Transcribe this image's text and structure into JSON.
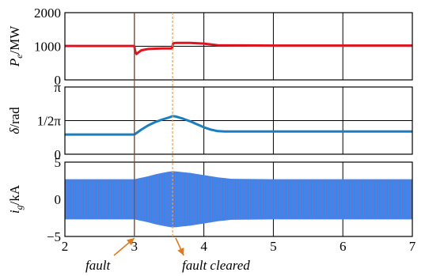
{
  "colors": {
    "power": "#e0141e",
    "angle": "#1a7fc0",
    "current_fill": "#3a87f0",
    "current_stripe": "#c84a6e",
    "fault_line": "#8a4a2a",
    "clear_line": "#e8a050",
    "arrow": "#e07a1a"
  },
  "chart_data": [
    {
      "type": "line",
      "panel": "power",
      "ylabel_main": "P",
      "ylabel_sub": "e",
      "ylabel_unit": "/MW",
      "ylim": [
        0,
        2000
      ],
      "yticks": [
        0,
        1000,
        2000
      ],
      "ytick_labels": [
        "0",
        "1000",
        "2000"
      ],
      "xlim": [
        2,
        7
      ],
      "grid": true,
      "x": [
        2.0,
        2.99,
        3.0,
        3.01,
        3.03,
        3.06,
        3.1,
        3.2,
        3.3,
        3.4,
        3.5,
        3.54,
        3.55,
        3.56,
        3.6,
        3.7,
        3.8,
        4.0,
        4.2,
        5.0,
        6.0,
        7.0
      ],
      "y": [
        1010,
        1010,
        1000,
        860,
        770,
        820,
        880,
        920,
        930,
        935,
        935,
        935,
        1030,
        1090,
        1100,
        1100,
        1100,
        1080,
        1030,
        1020,
        1020,
        1020
      ]
    },
    {
      "type": "line",
      "panel": "angle",
      "ylabel_main": "δ",
      "ylabel_unit": "/rad",
      "ylim": [
        0,
        3.1416
      ],
      "yticks": [
        0,
        1.5708,
        3.1416
      ],
      "ytick_labels": [
        "0",
        "1/2π",
        "π"
      ],
      "xlim": [
        2,
        7
      ],
      "grid": true,
      "x": [
        2.0,
        3.0,
        3.1,
        3.2,
        3.3,
        3.4,
        3.5,
        3.55,
        3.6,
        3.7,
        3.8,
        3.9,
        4.0,
        4.1,
        4.2,
        4.3,
        5.0,
        6.0,
        7.0
      ],
      "y": [
        0.92,
        0.92,
        1.15,
        1.35,
        1.5,
        1.62,
        1.72,
        1.78,
        1.76,
        1.66,
        1.54,
        1.4,
        1.26,
        1.15,
        1.08,
        1.06,
        1.06,
        1.06,
        1.06
      ]
    },
    {
      "type": "area",
      "panel": "current",
      "ylabel_main": "i",
      "ylabel_sub": "g",
      "ylabel_unit": "/kA",
      "ylim": [
        -5,
        5
      ],
      "yticks": [
        -5,
        0,
        5
      ],
      "ytick_labels": [
        "−5",
        "0",
        "5"
      ],
      "xlim": [
        2,
        7
      ],
      "xticks": [
        2,
        3,
        4,
        5,
        6,
        7
      ],
      "xtick_labels": [
        "2",
        "3",
        "4",
        "5",
        "6",
        "7"
      ],
      "grid": true,
      "x": [
        2.0,
        3.0,
        3.1,
        3.2,
        3.3,
        3.4,
        3.5,
        3.55,
        3.6,
        3.8,
        4.0,
        4.2,
        4.4,
        5.0,
        6.0,
        7.0
      ],
      "envelope": [
        2.7,
        2.7,
        2.9,
        3.1,
        3.35,
        3.55,
        3.72,
        3.78,
        3.75,
        3.55,
        3.25,
        2.95,
        2.75,
        2.7,
        2.7,
        2.7
      ]
    }
  ],
  "annotations": {
    "fault": "fault",
    "fault_cleared": "fault cleared",
    "fault_time": 3.0,
    "clear_time": 3.55
  }
}
